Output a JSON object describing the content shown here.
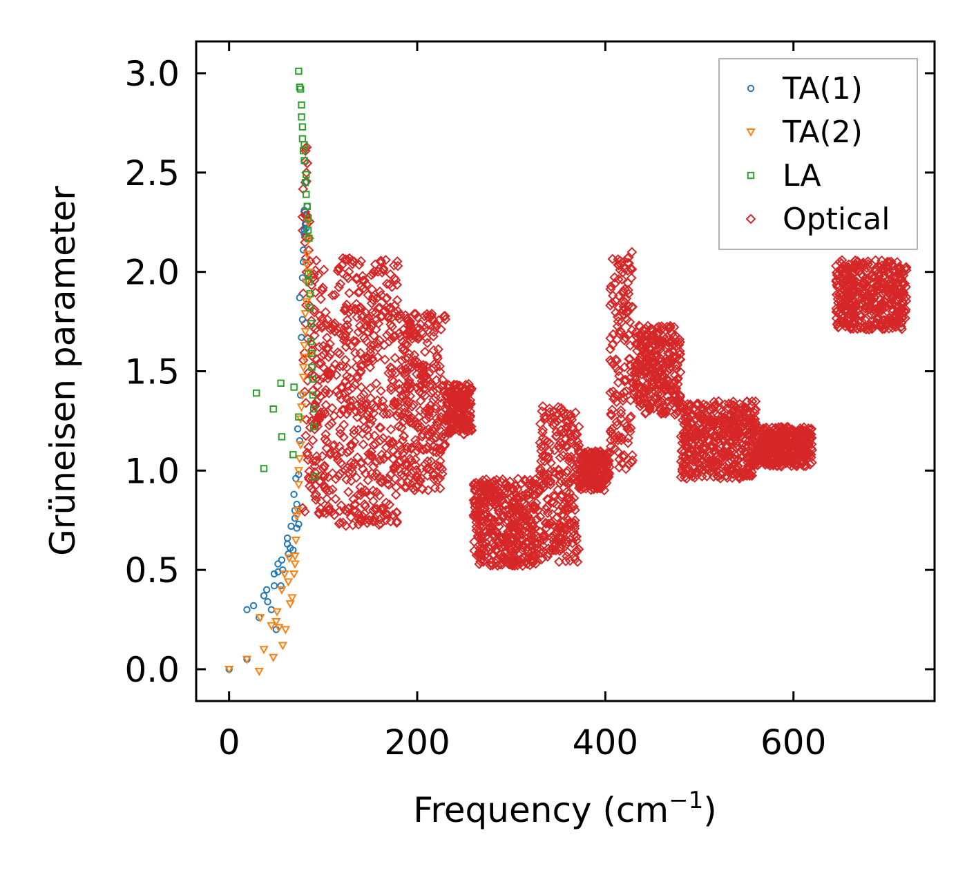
{
  "chart_data": {
    "type": "scatter",
    "title": "",
    "xlabel": "Frequency (cm",
    "xlabel_sup": "−1",
    "xlabel_close": ")",
    "ylabel": "Grüneisen parameter",
    "xlim": [
      -35,
      750
    ],
    "ylim": [
      -0.16,
      3.16
    ],
    "xticks": [
      0,
      200,
      400,
      600
    ],
    "xtick_labels": [
      "0",
      "200",
      "400",
      "600"
    ],
    "yticks": [
      0.0,
      0.5,
      1.0,
      1.5,
      2.0,
      2.5,
      3.0
    ],
    "ytick_labels": [
      "0.0",
      "0.5",
      "1.0",
      "1.5",
      "2.0",
      "2.5",
      "3.0"
    ],
    "grid": false,
    "legend_position": "top-right",
    "series": [
      {
        "name": "TA(1)",
        "marker": "circle",
        "color": "#1f77b4",
        "x": [
          0,
          19,
          19,
          26,
          32,
          37,
          40,
          41,
          45,
          48,
          48,
          50,
          52,
          52,
          55,
          56,
          57,
          62,
          62,
          63,
          65,
          66,
          68,
          69,
          70,
          70,
          71,
          72,
          72,
          73,
          74,
          74,
          75,
          75,
          76,
          77,
          78,
          78,
          79,
          79,
          80,
          80,
          80,
          81,
          82,
          82,
          83
        ],
        "y": [
          0.0,
          0.05,
          0.3,
          0.32,
          0.26,
          0.37,
          0.4,
          0.34,
          0.3,
          0.42,
          0.48,
          0.2,
          0.49,
          0.53,
          0.42,
          0.55,
          0.5,
          0.63,
          0.66,
          0.58,
          0.61,
          0.72,
          0.6,
          0.88,
          0.76,
          0.8,
          0.96,
          0.71,
          0.83,
          1.21,
          0.98,
          0.73,
          1.15,
          1.87,
          1.38,
          1.67,
          1.76,
          1.97,
          2.05,
          2.11,
          2.21,
          2.19,
          2.31,
          2.24,
          2.22,
          2.45,
          2.33
        ]
      },
      {
        "name": "TA(2)",
        "marker": "triangle-down",
        "color": "#ff7f0e",
        "x": [
          0,
          19,
          32,
          33,
          37,
          45,
          47,
          50,
          51,
          53,
          56,
          57,
          59,
          60,
          63,
          64,
          65,
          67,
          69,
          70,
          70,
          71,
          72,
          73,
          74,
          74,
          75,
          76,
          76,
          77,
          78,
          79,
          79,
          80,
          80,
          81,
          81,
          82,
          82,
          82,
          83,
          84,
          84,
          85,
          86,
          87
        ],
        "y": [
          0.0,
          0.05,
          -0.01,
          0.26,
          0.1,
          0.22,
          0.06,
          0.24,
          0.29,
          0.21,
          0.4,
          0.12,
          0.48,
          0.2,
          0.44,
          0.56,
          0.33,
          0.36,
          0.48,
          0.53,
          0.57,
          0.65,
          0.77,
          0.8,
          0.93,
          1.0,
          1.06,
          1.13,
          1.26,
          1.32,
          1.38,
          1.47,
          1.52,
          1.57,
          1.63,
          1.7,
          1.79,
          1.85,
          1.95,
          2.04,
          2.09,
          2.16,
          2.25,
          2.0,
          1.88,
          1.59
        ]
      },
      {
        "name": "LA",
        "marker": "square",
        "color": "#2ca02c",
        "x": [
          29,
          37,
          47,
          55,
          56,
          68,
          69,
          74,
          74,
          75,
          76,
          77,
          77,
          78,
          78,
          79,
          80,
          80,
          81,
          82,
          82,
          83,
          84,
          84,
          84,
          85,
          85,
          86,
          86,
          87,
          87,
          88,
          88,
          89,
          89,
          90,
          90,
          91
        ],
        "y": [
          1.39,
          1.01,
          1.31,
          1.44,
          1.17,
          1.08,
          1.42,
          1.27,
          3.01,
          2.93,
          2.92,
          2.84,
          2.78,
          2.73,
          2.67,
          2.61,
          2.64,
          2.56,
          2.45,
          2.49,
          2.39,
          2.33,
          2.27,
          2.21,
          1.99,
          2.17,
          1.95,
          1.89,
          1.82,
          1.74,
          1.65,
          1.59,
          1.52,
          1.46,
          1.38,
          1.31,
          1.22,
          0.97
        ]
      },
      {
        "name": "Optical",
        "marker": "diamond",
        "color": "#d62728"
      }
    ],
    "optical_bands": [
      {
        "x": [
          78,
          86
        ],
        "y": [
          0.78,
          2.7
        ]
      },
      {
        "x": [
          86,
          103
        ],
        "y": [
          0.78,
          2.1
        ]
      },
      {
        "x": [
          103,
          180
        ],
        "y": [
          0.72,
          2.07
        ]
      },
      {
        "x": [
          180,
          230
        ],
        "y": [
          0.9,
          1.79
        ]
      },
      {
        "x": [
          230,
          258
        ],
        "y": [
          1.18,
          1.44
        ]
      },
      {
        "x": [
          260,
          330
        ],
        "y": [
          0.52,
          0.96
        ]
      },
      {
        "x": [
          330,
          372
        ],
        "y": [
          0.54,
          1.33
        ]
      },
      {
        "x": [
          372,
          405
        ],
        "y": [
          0.9,
          1.1
        ]
      },
      {
        "x": [
          405,
          430
        ],
        "y": [
          1.0,
          2.1
        ]
      },
      {
        "x": [
          430,
          480
        ],
        "y": [
          1.28,
          1.73
        ]
      },
      {
        "x": [
          480,
          560
        ],
        "y": [
          0.96,
          1.35
        ]
      },
      {
        "x": [
          560,
          620
        ],
        "y": [
          1.02,
          1.22
        ]
      },
      {
        "x": [
          645,
          720
        ],
        "y": [
          1.71,
          2.06
        ]
      }
    ]
  }
}
